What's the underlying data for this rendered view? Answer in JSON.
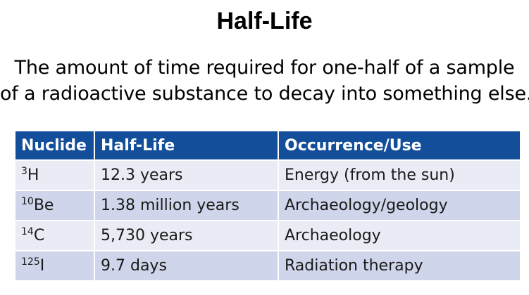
{
  "slide": {
    "title": "Half-Life",
    "definition_lines": [
      "The amount of time required for one-half of a sample",
      "of a radioactive substance to decay into something else."
    ]
  },
  "table": {
    "headers": [
      "Nuclide",
      "Half-Life",
      "Occurrence/Use"
    ],
    "rows": [
      {
        "mass_number": "3",
        "symbol": "H",
        "half_life": "12.3 years",
        "use": "Energy (from the sun)"
      },
      {
        "mass_number": "10",
        "symbol": "Be",
        "half_life": "1.38 million years",
        "use": "Archaeology/geology"
      },
      {
        "mass_number": "14",
        "symbol": "C",
        "half_life": "5,730 years",
        "use": "Archaeology"
      },
      {
        "mass_number": "125",
        "symbol": "I",
        "half_life": "9.7 days",
        "use": "Radiation therapy"
      }
    ],
    "colors": {
      "header_bg": "#134e9a",
      "row_light": "#e9ebf5",
      "row_dark": "#cfd5ea"
    }
  }
}
